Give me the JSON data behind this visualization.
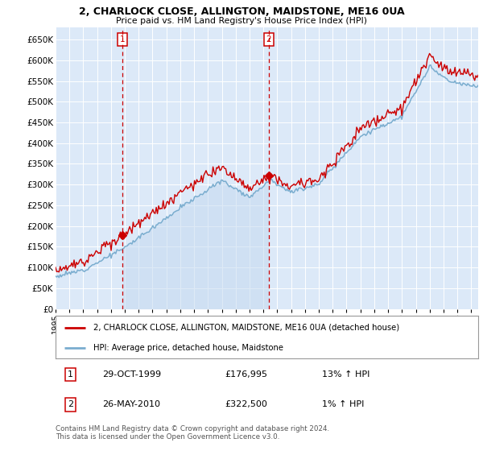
{
  "title": "2, CHARLOCK CLOSE, ALLINGTON, MAIDSTONE, ME16 0UA",
  "subtitle": "Price paid vs. HM Land Registry's House Price Index (HPI)",
  "ytick_values": [
    0,
    50000,
    100000,
    150000,
    200000,
    250000,
    300000,
    350000,
    400000,
    450000,
    500000,
    550000,
    600000,
    650000
  ],
  "ylim": [
    0,
    680000
  ],
  "xlim_start": 1995.0,
  "xlim_end": 2025.5,
  "plot_bg_color": "#dce9f8",
  "fig_bg_color": "#ffffff",
  "grid_color": "#ffffff",
  "sale1_date": 1999.83,
  "sale1_price": 176995,
  "sale2_date": 2010.39,
  "sale2_price": 322500,
  "legend_line1": "2, CHARLOCK CLOSE, ALLINGTON, MAIDSTONE, ME16 0UA (detached house)",
  "legend_line2": "HPI: Average price, detached house, Maidstone",
  "table_row1": [
    "1",
    "29-OCT-1999",
    "£176,995",
    "13% ↑ HPI"
  ],
  "table_row2": [
    "2",
    "26-MAY-2010",
    "£322,500",
    "1% ↑ HPI"
  ],
  "footer": "Contains HM Land Registry data © Crown copyright and database right 2024.\nThis data is licensed under the Open Government Licence v3.0.",
  "sale_color": "#cc0000",
  "hpi_color": "#7aadcf",
  "hpi_fill_color": "#c5daf0"
}
